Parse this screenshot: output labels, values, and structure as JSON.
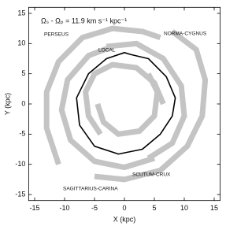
{
  "chart_data": {
    "type": "line",
    "title": "Ωₛ - Ωₚ = 11.9 km s⁻¹ kpc⁻¹",
    "xlabel": "X (kpc)",
    "ylabel": "Y (kpc)",
    "xlim": [
      -16,
      16
    ],
    "ylim": [
      -16,
      16
    ],
    "xticks": [
      -15,
      -10,
      -5,
      0,
      5,
      10,
      15
    ],
    "yticks": [
      -15,
      -10,
      -5,
      0,
      5,
      10,
      15
    ],
    "annotations": [
      "PERSEUS",
      "LOCAL",
      "NORMA-CYGNUS",
      "SCUTUM-CRUX",
      "SAGITTARIUS-CARINA"
    ],
    "series": [
      {
        "color": "#c4c4c4",
        "x": [
          -11,
          -13,
          -13,
          -11,
          -7,
          -2,
          3,
          6
        ],
        "y": [
          -10,
          -4,
          2,
          7,
          11,
          12.5,
          12,
          11
        ]
      },
      {
        "color": "#c4c4c4",
        "x": [
          8,
          12,
          13.5,
          13,
          10.5,
          6,
          0,
          -5
        ],
        "y": [
          12,
          9,
          4,
          -2,
          -7,
          -11,
          -12.5,
          -12
        ]
      },
      {
        "color": "#c4c4c4",
        "x": [
          5,
          0,
          -5,
          -9,
          -10.5,
          -9.5,
          -6,
          -2
        ],
        "y": [
          -9,
          -10.5,
          -9.5,
          -6,
          -1,
          4,
          8,
          9.5
        ]
      },
      {
        "color": "#c4c4c4",
        "x": [
          -3,
          2,
          6.5,
          9.5,
          10,
          8,
          4
        ],
        "y": [
          9.5,
          10,
          7.5,
          3,
          -2,
          -6.5,
          -9
        ]
      },
      {
        "color": "#c4c4c4",
        "x": [
          -4,
          -6,
          -6.5,
          -5,
          -2,
          2,
          5,
          6.5
        ],
        "y": [
          -5,
          -2,
          2,
          5,
          6.5,
          6,
          3.5,
          0
        ]
      },
      {
        "color": "#c4c4c4",
        "x": [
          4,
          5.5,
          5,
          2.5,
          -1,
          -3.5,
          -4.5
        ],
        "y": [
          5,
          2,
          -2,
          -4.5,
          -5,
          -3,
          0
        ]
      },
      {
        "color": "#000000",
        "x": [
          1,
          4,
          7,
          8.5,
          8,
          6,
          3,
          -1,
          -5,
          -7.5,
          -8,
          -6,
          -3,
          0,
          1
        ],
        "y": [
          8.2,
          7.5,
          4.5,
          1,
          -2,
          -5,
          -7.5,
          -8.3,
          -7,
          -3.5,
          1,
          5,
          7.5,
          8.5,
          8.2
        ]
      }
    ]
  }
}
